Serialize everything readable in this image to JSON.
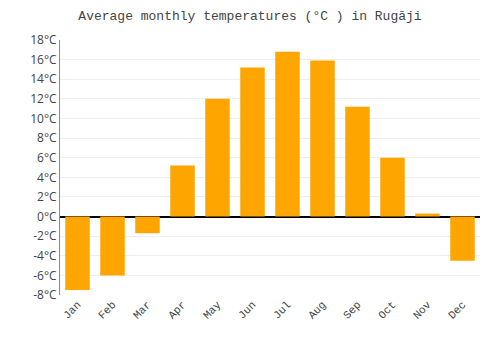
{
  "chart_data": {
    "type": "bar",
    "title": "Average monthly temperatures (°C ) in Rugāji",
    "categories": [
      "Jan",
      "Feb",
      "Mar",
      "Apr",
      "May",
      "Jun",
      "Jul",
      "Aug",
      "Sep",
      "Oct",
      "Nov",
      "Dec"
    ],
    "values": [
      -7.5,
      -6.0,
      -1.7,
      5.2,
      12.0,
      15.2,
      16.8,
      15.9,
      11.2,
      6.0,
      0.3,
      -4.5
    ],
    "color": "#FFA500",
    "ylim": [
      -8,
      18
    ],
    "yticks": [
      {
        "value": -8,
        "label": "-8°C"
      },
      {
        "value": -6,
        "label": "-6°C"
      },
      {
        "value": -4,
        "label": "-4°C"
      },
      {
        "value": -2,
        "label": "-2°C"
      },
      {
        "value": 0,
        "label": "0°C"
      },
      {
        "value": 2,
        "label": "2°C"
      },
      {
        "value": 4,
        "label": "4°C"
      },
      {
        "value": 6,
        "label": "6°C"
      },
      {
        "value": 8,
        "label": "8°C"
      },
      {
        "value": 10,
        "label": "10°C"
      },
      {
        "value": 12,
        "label": "12°C"
      },
      {
        "value": 14,
        "label": "14°C"
      },
      {
        "value": 16,
        "label": "16°C"
      },
      {
        "value": 18,
        "label": "18°C"
      }
    ],
    "grid": true
  }
}
